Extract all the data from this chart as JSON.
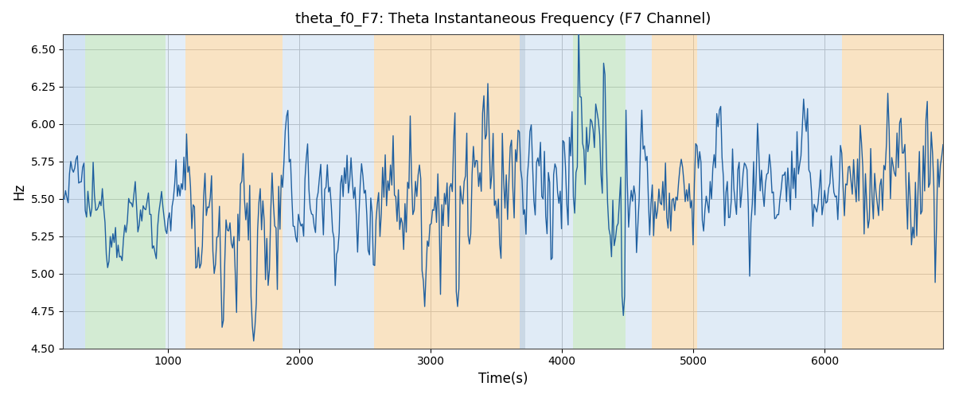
{
  "title": "theta_f0_F7: Theta Instantaneous Frequency (F7 Channel)",
  "xlabel": "Time(s)",
  "ylabel": "Hz",
  "ylim": [
    4.5,
    6.6
  ],
  "xlim": [
    200,
    6900
  ],
  "yticks": [
    4.5,
    4.75,
    5.0,
    5.25,
    5.5,
    5.75,
    6.0,
    6.25,
    6.5
  ],
  "xticks": [
    1000,
    2000,
    3000,
    4000,
    5000,
    6000
  ],
  "line_color": "#2060a0",
  "line_width": 1.0,
  "grid_color": "#bbbbbb",
  "background_color": "#ffffff",
  "bands": [
    {
      "xmin": 200,
      "xmax": 370,
      "color": "#a8c8e8",
      "alpha": 0.5
    },
    {
      "xmin": 370,
      "xmax": 980,
      "color": "#a8d8a8",
      "alpha": 0.5
    },
    {
      "xmin": 980,
      "xmax": 1130,
      "color": "#a8c8e8",
      "alpha": 0.3
    },
    {
      "xmin": 1130,
      "xmax": 1870,
      "color": "#f5c888",
      "alpha": 0.5
    },
    {
      "xmin": 1870,
      "xmax": 2570,
      "color": "#a8c8e8",
      "alpha": 0.35
    },
    {
      "xmin": 2570,
      "xmax": 3680,
      "color": "#f5c888",
      "alpha": 0.5
    },
    {
      "xmin": 3680,
      "xmax": 3720,
      "color": "#a0b8d0",
      "alpha": 0.55
    },
    {
      "xmin": 3720,
      "xmax": 4080,
      "color": "#a8c8e8",
      "alpha": 0.35
    },
    {
      "xmin": 4080,
      "xmax": 4480,
      "color": "#a8d8a8",
      "alpha": 0.5
    },
    {
      "xmin": 4480,
      "xmax": 4680,
      "color": "#a8c8e8",
      "alpha": 0.35
    },
    {
      "xmin": 4680,
      "xmax": 5030,
      "color": "#f5c888",
      "alpha": 0.5
    },
    {
      "xmin": 5030,
      "xmax": 6130,
      "color": "#a8c8e8",
      "alpha": 0.35
    },
    {
      "xmin": 6130,
      "xmax": 6900,
      "color": "#f5c888",
      "alpha": 0.5
    }
  ],
  "n_points": 670,
  "x_start": 200,
  "x_end": 6900,
  "seed": 12345
}
